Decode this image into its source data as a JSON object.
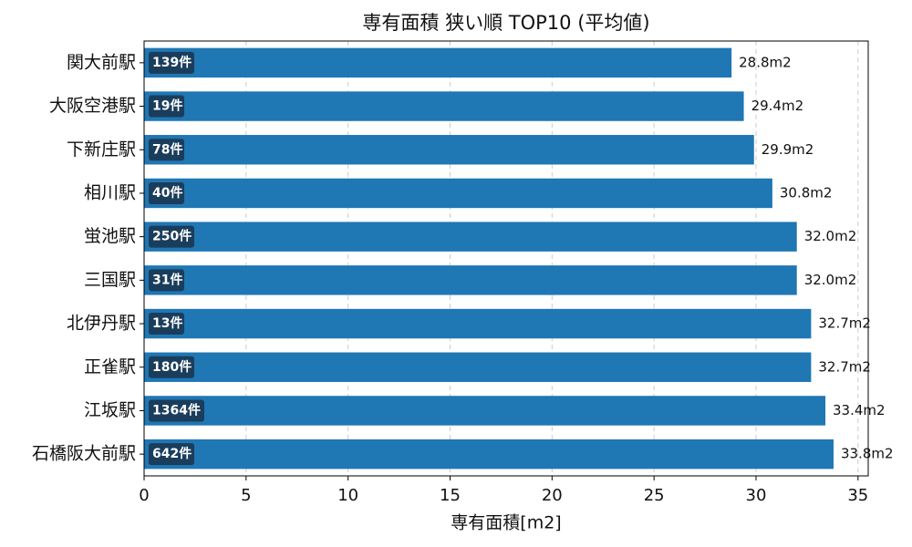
{
  "chart_data": {
    "type": "barh",
    "title": "専有面積 狭い順 TOP10 (平均値)",
    "x_label": "専有面積[m2]",
    "categories": [
      "関大前駅",
      "大阪空港駅",
      "下新庄駅",
      "相川駅",
      "蛍池駅",
      "三国駅",
      "北伊丹駅",
      "正雀駅",
      "江坂駅",
      "石橋阪大前駅"
    ],
    "values": [
      28.8,
      29.4,
      29.9,
      30.8,
      32.0,
      32.0,
      32.7,
      32.7,
      33.4,
      33.8
    ],
    "value_labels": [
      "28.8m2",
      "29.4m2",
      "29.9m2",
      "30.8m2",
      "32.0m2",
      "32.0m2",
      "32.7m2",
      "32.7m2",
      "33.4m2",
      "33.8m2"
    ],
    "count_labels": [
      "139件",
      "19件",
      "78件",
      "40件",
      "250件",
      "31件",
      "13件",
      "180件",
      "1364件",
      "642件"
    ],
    "color": "#1f77b4",
    "count_label_color": "#1a3d5c",
    "xlim": [
      0,
      35.5
    ],
    "xticks": [
      0,
      5,
      10,
      15,
      20,
      25,
      30,
      35
    ],
    "grid": true
  }
}
